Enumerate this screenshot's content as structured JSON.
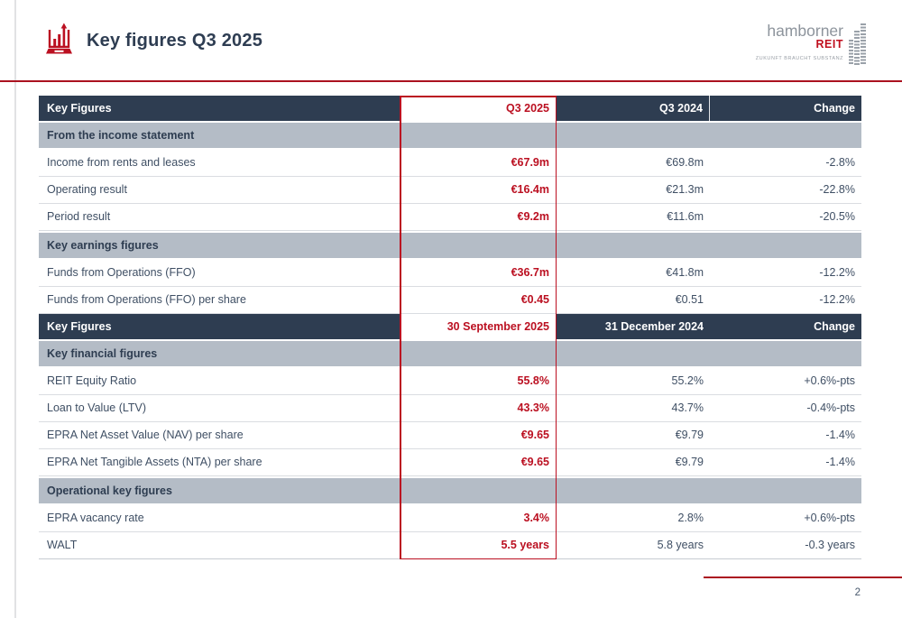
{
  "slide": {
    "title": "Key figures Q3 2025",
    "page_number": "2"
  },
  "logo": {
    "name": "hamborner",
    "brand": "REIT",
    "tagline": "ZUKUNFT BRAUCHT SUBSTANZ"
  },
  "colors": {
    "navy_header": "#2e3d51",
    "section_gray": "#b4bcc6",
    "accent_red": "#bb1021",
    "rule_red": "#ab1220",
    "body_text": "#3f4f64"
  },
  "table": {
    "groups": [
      {
        "headers": {
          "label": "Key Figures",
          "current": "Q3 2025",
          "previous": "Q3 2024",
          "change": "Change"
        },
        "header_divider": true,
        "sections": [
          {
            "title": "From the income statement",
            "rows": [
              {
                "label": "Income from rents and leases",
                "current": "€67.9m",
                "previous": "€69.8m",
                "change": "-2.8%"
              },
              {
                "label": "Operating result",
                "current": "€16.4m",
                "previous": "€21.3m",
                "change": "-22.8%"
              },
              {
                "label": "Period result",
                "current": "€9.2m",
                "previous": "€11.6m",
                "change": "-20.5%"
              }
            ]
          },
          {
            "title": "Key earnings figures",
            "rows": [
              {
                "label": "Funds from Operations (FFO)",
                "current": "€36.7m",
                "previous": "€41.8m",
                "change": "-12.2%"
              },
              {
                "label": "Funds from Operations (FFO) per share",
                "current": "€0.45",
                "previous": "€0.51",
                "change": "-12.2%"
              }
            ]
          }
        ]
      },
      {
        "headers": {
          "label": "Key Figures",
          "current": "30 September 2025",
          "previous": "31 December 2024",
          "change": "Change"
        },
        "header_divider": false,
        "sections": [
          {
            "title": "Key financial figures",
            "rows": [
              {
                "label": "REIT Equity Ratio",
                "current": "55.8%",
                "previous": "55.2%",
                "change": "+0.6%-pts"
              },
              {
                "label": "Loan to Value (LTV)",
                "current": "43.3%",
                "previous": "43.7%",
                "change": "-0.4%-pts"
              },
              {
                "label": "EPRA Net Asset Value (NAV) per share",
                "current": "€9.65",
                "previous": "€9.79",
                "change": "-1.4%"
              },
              {
                "label": "EPRA Net Tangible Assets (NTA) per share",
                "current": "€9.65",
                "previous": "€9.79",
                "change": "-1.4%"
              }
            ]
          },
          {
            "title": "Operational key figures",
            "rows": [
              {
                "label": "EPRA vacancy rate",
                "current": "3.4%",
                "previous": "2.8%",
                "change": "+0.6%-pts"
              },
              {
                "label": "WALT",
                "current": "5.5 years",
                "previous": "5.8 years",
                "change": "-0.3 years"
              }
            ]
          }
        ]
      }
    ]
  }
}
